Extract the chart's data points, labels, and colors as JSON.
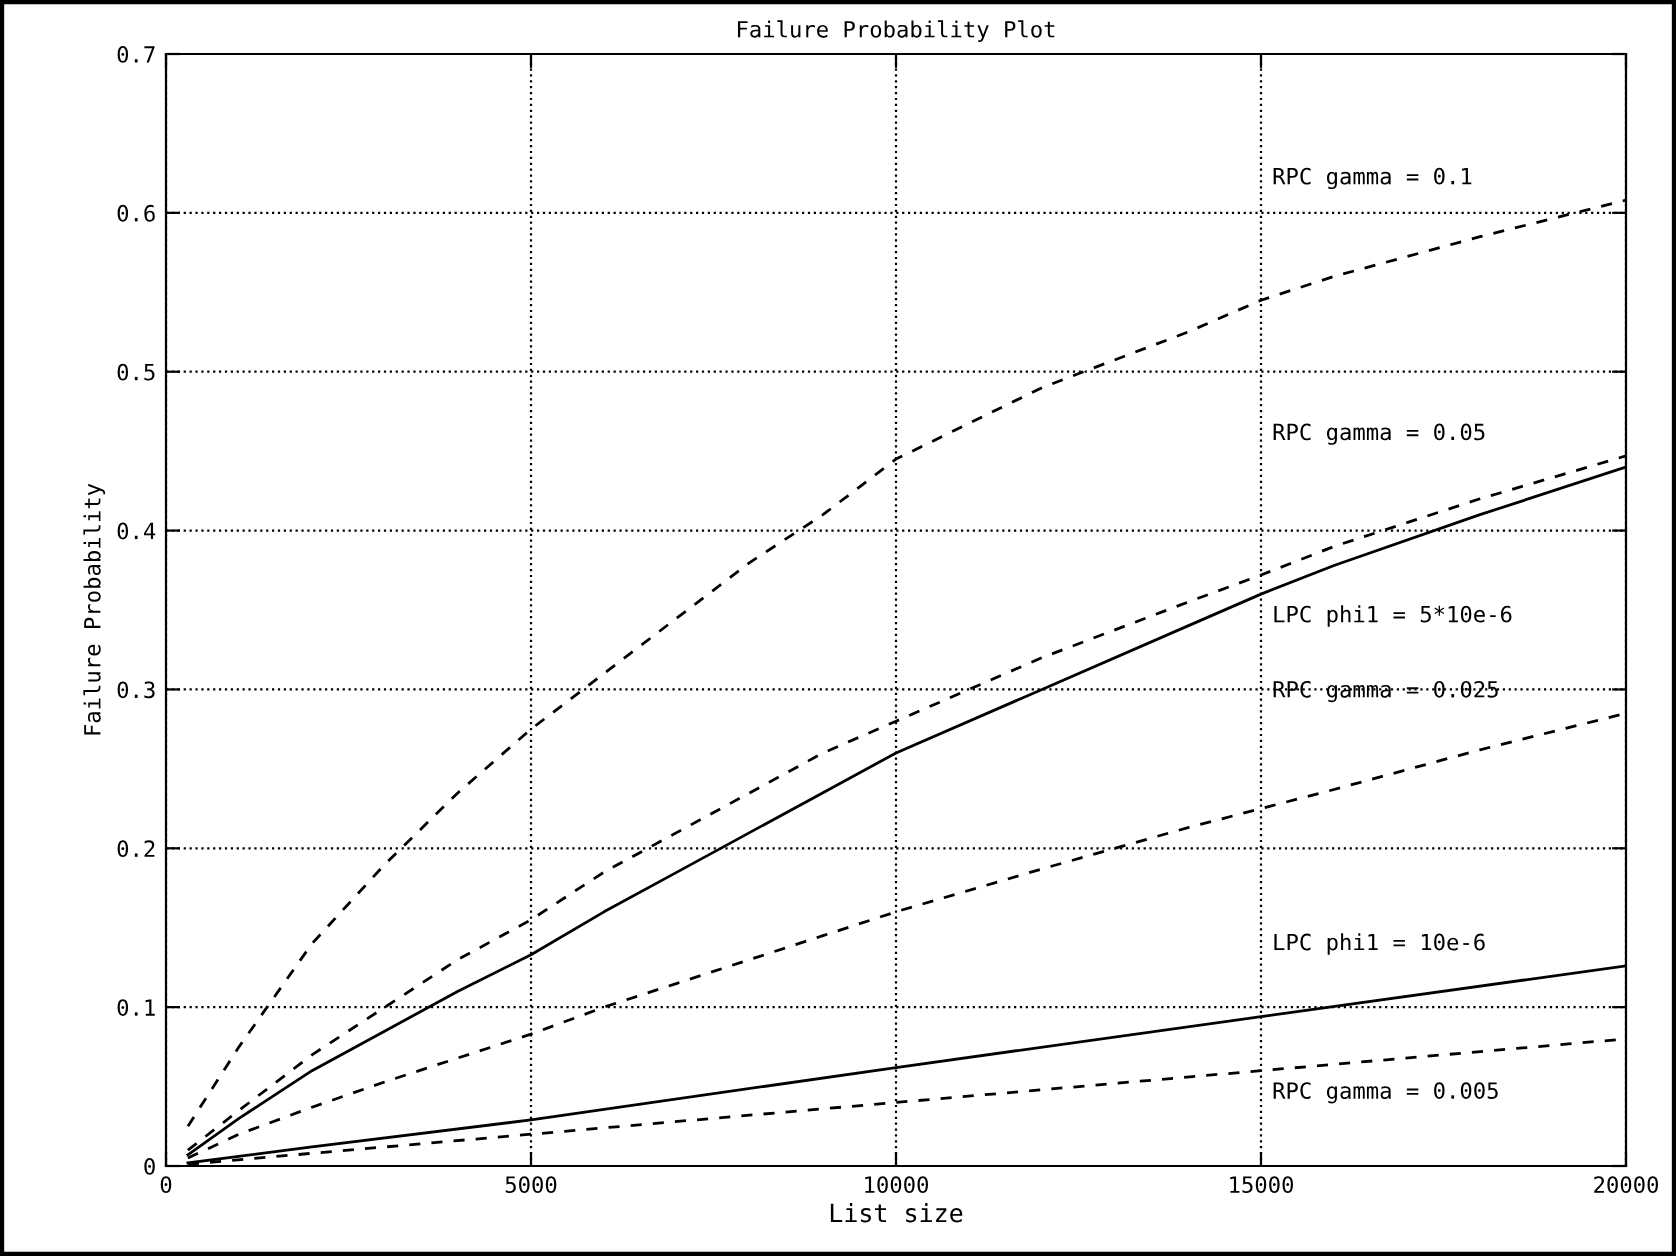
{
  "chart_data": {
    "type": "line",
    "title": "Failure Probability Plot",
    "xlabel": "List size",
    "ylabel": "Failure Probability",
    "xlim": [
      0,
      20000
    ],
    "ylim": [
      0,
      0.7
    ],
    "xticks": [
      0,
      5000,
      10000,
      15000,
      20000
    ],
    "yticks": [
      0,
      0.1,
      0.2,
      0.3,
      0.4,
      0.5,
      0.6,
      0.7
    ],
    "grid": true,
    "marker": "none",
    "series": [
      {
        "name": "RPC gamma = 0.1",
        "color": "#000000",
        "line_style": "dashed",
        "x": [
          300,
          1000,
          2000,
          3000,
          4000,
          5000,
          6000,
          7000,
          8000,
          9000,
          10000,
          12000,
          14000,
          15000,
          16000,
          18000,
          20000
        ],
        "values": [
          0.025,
          0.075,
          0.14,
          0.19,
          0.235,
          0.275,
          0.31,
          0.345,
          0.38,
          0.41,
          0.445,
          0.49,
          0.525,
          0.545,
          0.56,
          0.585,
          0.608
        ]
      },
      {
        "name": "RPC gamma = 0.05",
        "color": "#000000",
        "line_style": "dashed",
        "x": [
          300,
          1000,
          2000,
          3000,
          4000,
          5000,
          6000,
          7000,
          8000,
          9000,
          10000,
          12000,
          14000,
          15000,
          16000,
          18000,
          20000
        ],
        "values": [
          0.01,
          0.035,
          0.07,
          0.1,
          0.13,
          0.155,
          0.185,
          0.21,
          0.235,
          0.26,
          0.28,
          0.32,
          0.355,
          0.372,
          0.39,
          0.42,
          0.447
        ]
      },
      {
        "name": "LPC phi1 = 5*10e-6",
        "color": "#000000",
        "line_style": "solid",
        "x": [
          300,
          1000,
          2000,
          3000,
          4000,
          5000,
          6000,
          7000,
          8000,
          9000,
          10000,
          12000,
          14000,
          15000,
          16000,
          18000,
          20000
        ],
        "values": [
          0.007,
          0.03,
          0.06,
          0.085,
          0.11,
          0.133,
          0.16,
          0.185,
          0.21,
          0.235,
          0.26,
          0.3,
          0.34,
          0.36,
          0.378,
          0.41,
          0.44
        ]
      },
      {
        "name": "RPC gamma = 0.025",
        "color": "#000000",
        "line_style": "dashed",
        "x": [
          300,
          1000,
          2000,
          3000,
          4000,
          5000,
          6000,
          7000,
          8000,
          9000,
          10000,
          12000,
          14000,
          15000,
          16000,
          18000,
          20000
        ],
        "values": [
          0.005,
          0.02,
          0.037,
          0.053,
          0.068,
          0.083,
          0.1,
          0.115,
          0.13,
          0.145,
          0.16,
          0.187,
          0.213,
          0.225,
          0.237,
          0.262,
          0.285
        ]
      },
      {
        "name": "LPC phi1 = 10e-6",
        "color": "#000000",
        "line_style": "solid",
        "x": [
          300,
          2000,
          5000,
          10000,
          15000,
          20000
        ],
        "values": [
          0.002,
          0.012,
          0.029,
          0.062,
          0.094,
          0.126
        ]
      },
      {
        "name": "RPC gamma = 0.005",
        "color": "#000000",
        "line_style": "dashed",
        "x": [
          300,
          2000,
          5000,
          10000,
          15000,
          20000
        ],
        "values": [
          0.001,
          0.008,
          0.02,
          0.04,
          0.06,
          0.08
        ]
      }
    ]
  }
}
